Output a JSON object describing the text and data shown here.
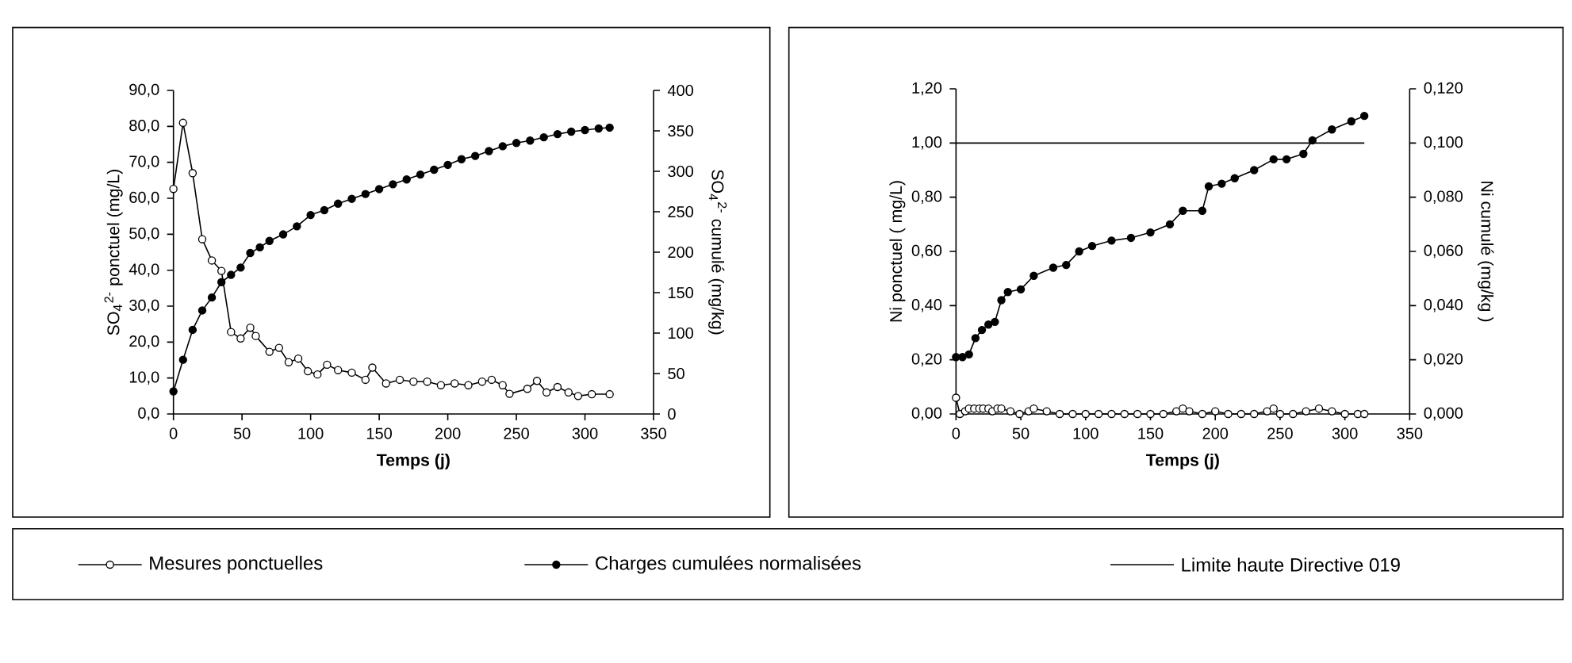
{
  "chart_data": [
    {
      "type": "line",
      "xlabel": "Temps (j)",
      "ylabel": "SO$_{4}$$^{2-}$ ponctuel (mg/L)",
      "y2label": "SO$_{4}$$^{2-}$ cumulé (mg/kg)",
      "marker": "circle",
      "legend": "bottom",
      "xlim": [
        0,
        350
      ],
      "xticks": [
        0,
        50,
        100,
        150,
        200,
        250,
        300,
        350
      ],
      "ylim": [
        0,
        90
      ],
      "yticks": [
        {
          "value": 0,
          "label": "0,0"
        },
        {
          "value": 10,
          "label": "10,0"
        },
        {
          "value": 20,
          "label": "20,0"
        },
        {
          "value": 30,
          "label": "30,0"
        },
        {
          "value": 40,
          "label": "40,0"
        },
        {
          "value": 50,
          "label": "50,0"
        },
        {
          "value": 60,
          "label": "60,0"
        },
        {
          "value": 70,
          "label": "70,0"
        },
        {
          "value": 80,
          "label": "80,0"
        },
        {
          "value": 90,
          "label": "90,0"
        }
      ],
      "y2lim": [
        0,
        400
      ],
      "y2ticks": [
        0,
        50,
        100,
        150,
        200,
        250,
        300,
        350,
        400
      ],
      "series": [
        {
          "name": "Mesures ponctuelles",
          "color": "#000000",
          "x": [
            0,
            7,
            14,
            21,
            28,
            35,
            42,
            49,
            56,
            60,
            70,
            77,
            84,
            91,
            98,
            105,
            112,
            120,
            130,
            140,
            145,
            155,
            165,
            175,
            185,
            195,
            205,
            215,
            225,
            232,
            240,
            245,
            258,
            265,
            272,
            280,
            288,
            295,
            305,
            318
          ],
          "values": [
            62.6,
            81.0,
            67.0,
            48.6,
            42.7,
            39.8,
            22.8,
            21.0,
            24.0,
            21.7,
            17.3,
            18.4,
            14.4,
            15.4,
            11.9,
            11.0,
            13.7,
            12.2,
            11.5,
            9.5,
            12.9,
            8.5,
            9.5,
            9.0,
            9.0,
            8.0,
            8.5,
            8.0,
            9.0,
            9.5,
            8.0,
            5.6,
            7.0,
            9.2,
            6.0,
            7.5,
            6.0,
            5.0,
            5.5,
            5.5
          ]
        },
        {
          "name": "Charges cumulées normalisées",
          "color": "#000000",
          "axis": "y2",
          "x": [
            0,
            7,
            14,
            21,
            28,
            35,
            42,
            49,
            56,
            63,
            70,
            80,
            90,
            100,
            110,
            120,
            130,
            140,
            150,
            160,
            170,
            180,
            190,
            200,
            210,
            220,
            230,
            240,
            250,
            260,
            270,
            280,
            290,
            300,
            310,
            318
          ],
          "values": [
            28,
            67,
            104,
            128,
            144,
            163,
            172,
            181,
            199,
            206,
            214,
            222,
            232,
            246,
            252,
            260,
            266,
            272,
            278,
            284,
            290,
            296,
            302,
            308,
            315,
            319,
            325,
            331,
            335,
            338,
            342,
            346,
            349,
            351,
            353,
            354
          ]
        }
      ]
    },
    {
      "type": "line",
      "xlabel": "Temps (j)",
      "ylabel": "Ni ponctuel ( mg/L)",
      "y2label": "Ni cumulé (mg/kg )",
      "marker": "circle",
      "xlim": [
        0,
        350
      ],
      "xticks": [
        0,
        50,
        100,
        150,
        200,
        250,
        300,
        350
      ],
      "ylim": [
        0,
        1.2
      ],
      "yticks": [
        {
          "value": 0,
          "label": "0,00"
        },
        {
          "value": 0.2,
          "label": "0,20"
        },
        {
          "value": 0.4,
          "label": "0,40"
        },
        {
          "value": 0.6,
          "label": "0,60"
        },
        {
          "value": 0.8,
          "label": "0,80"
        },
        {
          "value": 1.0,
          "label": "1,00"
        },
        {
          "value": 1.2,
          "label": "1,20"
        }
      ],
      "y2lim": [
        0,
        0.12
      ],
      "y2ticks": [
        {
          "value": 0,
          "label": "0,000"
        },
        {
          "value": 0.02,
          "label": "0,020"
        },
        {
          "value": 0.04,
          "label": "0,040"
        },
        {
          "value": 0.06,
          "label": "0,060"
        },
        {
          "value": 0.08,
          "label": "0,080"
        },
        {
          "value": 0.1,
          "label": "0,100"
        },
        {
          "value": 0.12,
          "label": "0,120"
        }
      ],
      "ref_lines": [
        {
          "axis": "y",
          "value": 1.0,
          "label": "Limite haute Directive 019",
          "color": "#000000",
          "line_style": "solid"
        }
      ],
      "series": [
        {
          "color": "#000000",
          "x": [
            0,
            3,
            7,
            10,
            14,
            18,
            21,
            25,
            28,
            32,
            35,
            42,
            49,
            56,
            60,
            70,
            80,
            90,
            100,
            110,
            120,
            130,
            140,
            150,
            160,
            170,
            175,
            180,
            190,
            200,
            210,
            220,
            230,
            240,
            245,
            250,
            260,
            270,
            280,
            290,
            300,
            310,
            315
          ],
          "values": [
            0.06,
            0.0,
            0.01,
            0.02,
            0.02,
            0.02,
            0.02,
            0.02,
            0.01,
            0.02,
            0.02,
            0.01,
            0.0,
            0.01,
            0.02,
            0.01,
            0.0,
            0.0,
            0.0,
            0.0,
            0.0,
            0.0,
            0.0,
            0.0,
            0.0,
            0.01,
            0.02,
            0.01,
            0.0,
            0.01,
            0.0,
            0.0,
            0.0,
            0.01,
            0.02,
            0.0,
            0.0,
            0.01,
            0.02,
            0.01,
            0.0,
            0.0,
            0.0
          ]
        },
        {
          "color": "#000000",
          "axis": "y2",
          "x": [
            0,
            5,
            10,
            15,
            20,
            25,
            30,
            35,
            40,
            50,
            60,
            75,
            85,
            95,
            105,
            120,
            135,
            150,
            165,
            175,
            190,
            195,
            205,
            215,
            230,
            245,
            255,
            268,
            275,
            290,
            305,
            315
          ],
          "values": [
            0.021,
            0.021,
            0.022,
            0.028,
            0.031,
            0.033,
            0.034,
            0.042,
            0.045,
            0.046,
            0.051,
            0.054,
            0.055,
            0.06,
            0.062,
            0.064,
            0.065,
            0.067,
            0.07,
            0.075,
            0.075,
            0.084,
            0.085,
            0.087,
            0.09,
            0.094,
            0.094,
            0.096,
            0.101,
            0.105,
            0.108,
            0.11
          ]
        }
      ]
    }
  ]
}
